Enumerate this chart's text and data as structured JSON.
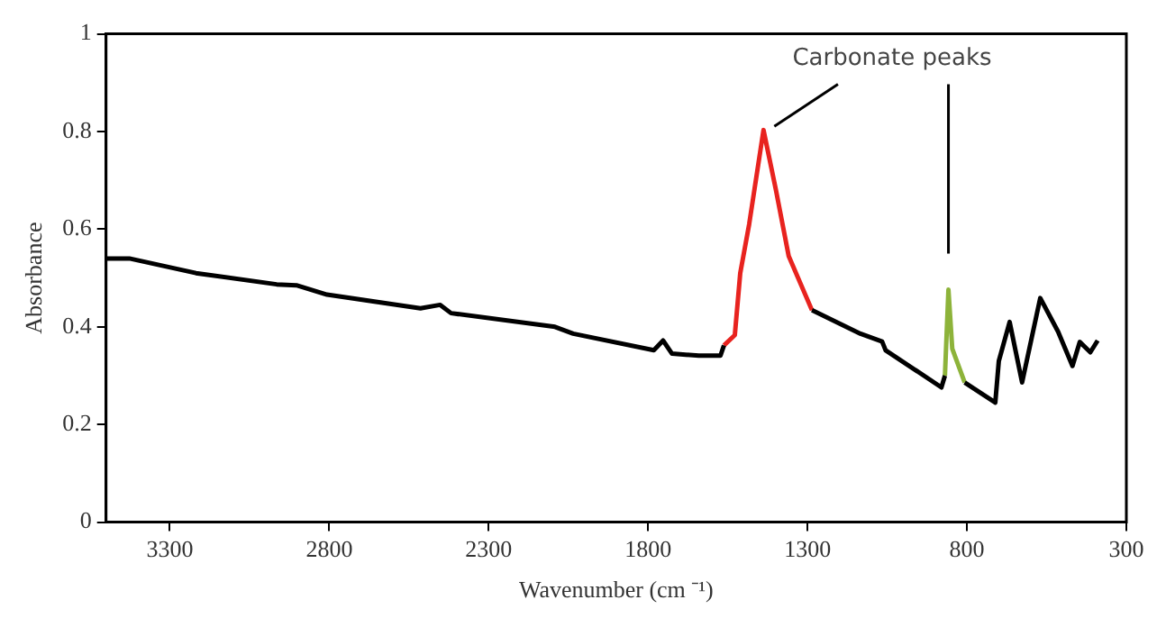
{
  "chart_data": {
    "type": "line",
    "xlabel": "Wavenumber (cm ⁻¹)",
    "ylabel": "Absorbance",
    "annotations": [
      "Carbonate peaks"
    ],
    "xlim": [
      3500,
      300
    ],
    "xticks": [
      3300,
      2800,
      2300,
      1800,
      1300,
      800,
      300
    ],
    "ylim": [
      0,
      1
    ],
    "yticks": [
      0,
      0.2,
      0.4,
      0.6,
      0.8,
      1
    ],
    "grid": false,
    "legend": false,
    "marker": "none",
    "line_style": "solid",
    "series": [
      {
        "color": "#000000",
        "x": [
          3500,
          3427,
          3218,
          2965,
          2903,
          2807,
          2514,
          2452,
          2418,
          2092,
          2035,
          1782,
          1753,
          1725,
          1641,
          1573,
          1562,
          1500,
          1286,
          1134,
          1066,
          1055,
          880,
          869,
          850,
          807,
          711,
          700,
          666,
          627,
          570,
          514,
          469,
          446,
          413,
          390
        ],
        "values": [
          0.54,
          0.54,
          0.51,
          0.487,
          0.485,
          0.466,
          0.438,
          0.445,
          0.428,
          0.4,
          0.386,
          0.352,
          0.372,
          0.345,
          0.341,
          0.341,
          0.362,
          null,
          0.434,
          0.386,
          0.37,
          0.352,
          0.276,
          0.3,
          null,
          0.286,
          0.245,
          0.33,
          0.41,
          0.286,
          0.459,
          0.39,
          0.32,
          0.369,
          0.348,
          0.372
        ]
      },
      {
        "color": "#e8231f",
        "x": [
          1562,
          1528,
          1511,
          1483,
          1438,
          1399,
          1359,
          1286
        ],
        "values": [
          0.362,
          0.383,
          0.51,
          0.61,
          0.803,
          0.68,
          0.545,
          0.434
        ]
      },
      {
        "color": "#8db33a",
        "x": [
          869,
          858,
          846,
          807
        ],
        "values": [
          0.3,
          0.476,
          0.355,
          0.286
        ]
      }
    ]
  }
}
